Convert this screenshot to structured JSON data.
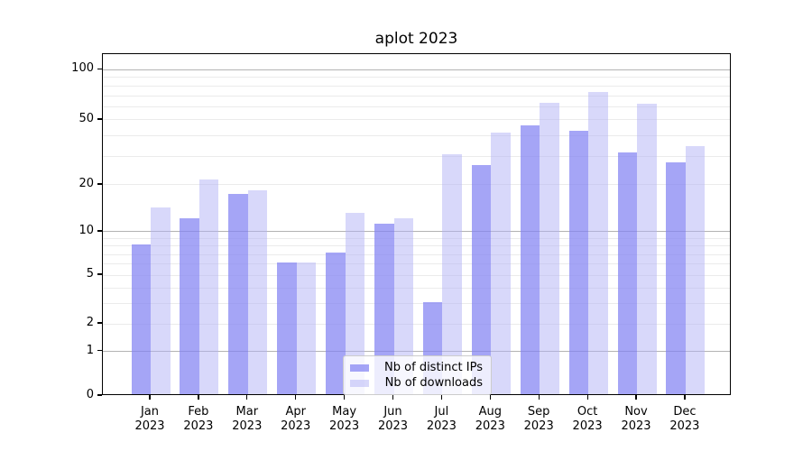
{
  "chart_data": {
    "type": "bar",
    "title": "aplot 2023",
    "categories": [
      "Jan 2023",
      "Feb 2023",
      "Mar 2023",
      "Apr 2023",
      "May 2023",
      "Jun 2023",
      "Jul 2023",
      "Aug 2023",
      "Sep 2023",
      "Oct 2023",
      "Nov 2023",
      "Dec 2023"
    ],
    "series": [
      {
        "name": "Nb of distinct IPs",
        "values": [
          8,
          12,
          17,
          6,
          7,
          11,
          3,
          26,
          45,
          42,
          31,
          27
        ]
      },
      {
        "name": "Nb of downloads",
        "values": [
          14,
          21,
          18,
          6,
          13,
          12,
          30,
          41,
          62,
          72,
          61,
          34
        ]
      }
    ],
    "xlabel": "",
    "ylabel": "",
    "y_axis": {
      "scale": "asinh-like (logarithmic above 1, linear segment between 0 and 1)",
      "ticks": [
        100,
        50,
        20,
        10,
        5,
        2,
        1,
        0
      ],
      "range": [
        0,
        124
      ],
      "grid_major_at": [
        1,
        10,
        100
      ],
      "grid_minor_at": [
        2,
        3,
        4,
        5,
        6,
        7,
        8,
        9,
        20,
        30,
        40,
        50,
        60,
        70,
        80,
        90
      ]
    },
    "grid": "horizontal only",
    "legend_position": "lower center, inside plot"
  },
  "colors": {
    "ips_bar": "rgba(130,130,243,0.72)",
    "downloads_bar": "rgba(178,178,246,0.5)",
    "grid_major": "#b3b3b3",
    "grid_minor": "#ebebeb",
    "axis_line": "#000000",
    "text": "#000000",
    "legend_border": "#cccccc",
    "legend_bg": "rgba(255,255,255,0.8)"
  }
}
